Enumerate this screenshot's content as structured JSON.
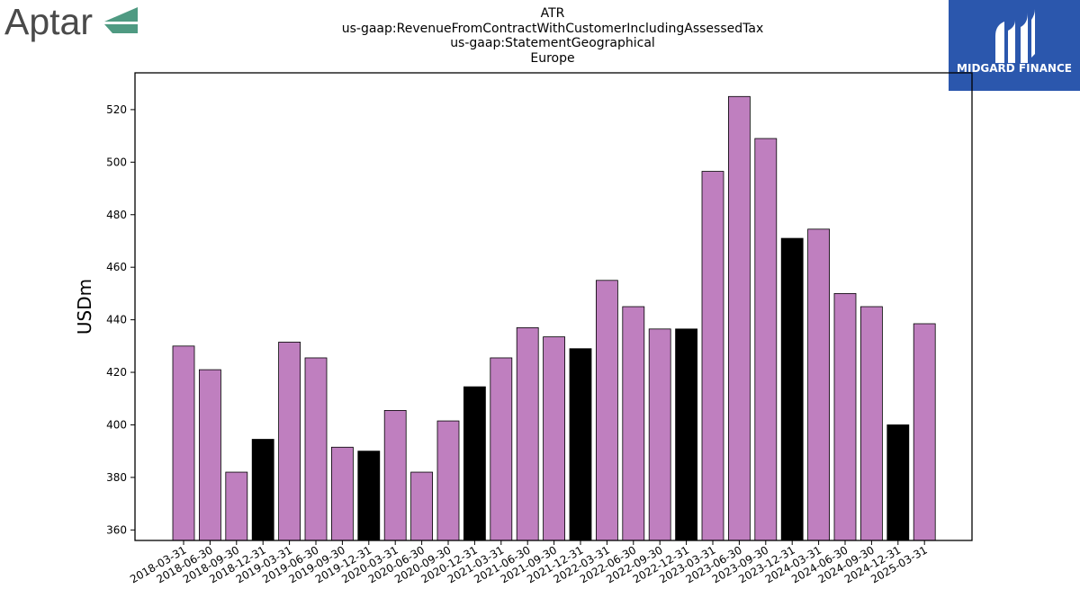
{
  "branding": {
    "company_logo_text": "Aptar",
    "sponsor_logo_text": "MIDGARD FINANCE",
    "colors": {
      "aptar_text": "#4a4a4a",
      "aptar_mark": "#4f9a82",
      "midgard_bg": "#2b57ad"
    }
  },
  "chart_data": {
    "type": "bar",
    "title": "ATR",
    "subtitle_lines": [
      "us-gaap:RevenueFromContractWithCustomerIncludingAssessedTax",
      "us-gaap:StatementGeographical",
      "Europe"
    ],
    "ylabel": "USDm",
    "xlabel": "",
    "ylim": [
      356,
      534
    ],
    "yticks": [
      360,
      380,
      400,
      420,
      440,
      460,
      480,
      500,
      520
    ],
    "grid": false,
    "colors": {
      "quarter": "#bf7fbf",
      "year_end": "#000000"
    },
    "categories": [
      "2018-03-31",
      "2018-06-30",
      "2018-09-30",
      "2018-12-31",
      "2019-03-31",
      "2019-06-30",
      "2019-09-30",
      "2019-12-31",
      "2020-03-31",
      "2020-06-30",
      "2020-09-30",
      "2020-12-31",
      "2021-03-31",
      "2021-06-30",
      "2021-09-30",
      "2021-12-31",
      "2022-03-31",
      "2022-06-30",
      "2022-09-30",
      "2022-12-31",
      "2023-03-31",
      "2023-06-30",
      "2023-09-30",
      "2023-12-31",
      "2024-03-31",
      "2024-06-30",
      "2024-09-30",
      "2024-12-31",
      "2025-03-31"
    ],
    "values": [
      430,
      421,
      382,
      394.5,
      431.5,
      425.5,
      391.5,
      390,
      405.5,
      382,
      401.5,
      414.5,
      425.5,
      437,
      433.5,
      429,
      455,
      445,
      436.5,
      436.5,
      496.5,
      525,
      509,
      471,
      474.5,
      450,
      445,
      400,
      438.5
    ]
  }
}
